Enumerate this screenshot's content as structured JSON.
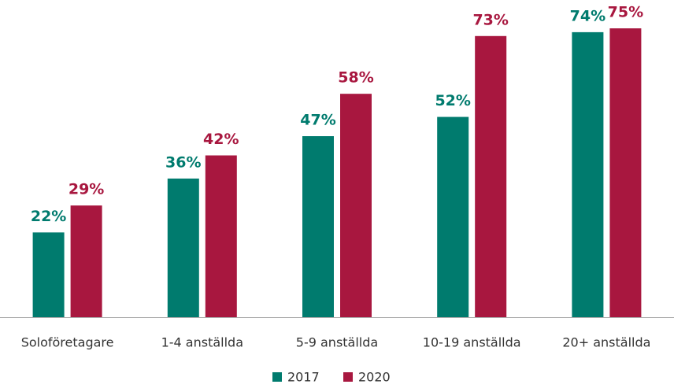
{
  "chart_data": {
    "type": "bar",
    "categories": [
      "Soloföretagare",
      "1-4 anställda",
      "5-9 anställda",
      "10-19 anställda",
      "20+ anställda"
    ],
    "series": [
      {
        "name": "2017",
        "color": "#007b6e",
        "values": [
          22,
          36,
          47,
          52,
          74
        ],
        "value_labels": [
          "22%",
          "36%",
          "47%",
          "52%",
          "74%"
        ]
      },
      {
        "name": "2020",
        "color": "#a8173f",
        "values": [
          29,
          42,
          58,
          73,
          75
        ],
        "value_labels": [
          "29%",
          "42%",
          "58%",
          "73%",
          "75%"
        ]
      }
    ]
  }
}
